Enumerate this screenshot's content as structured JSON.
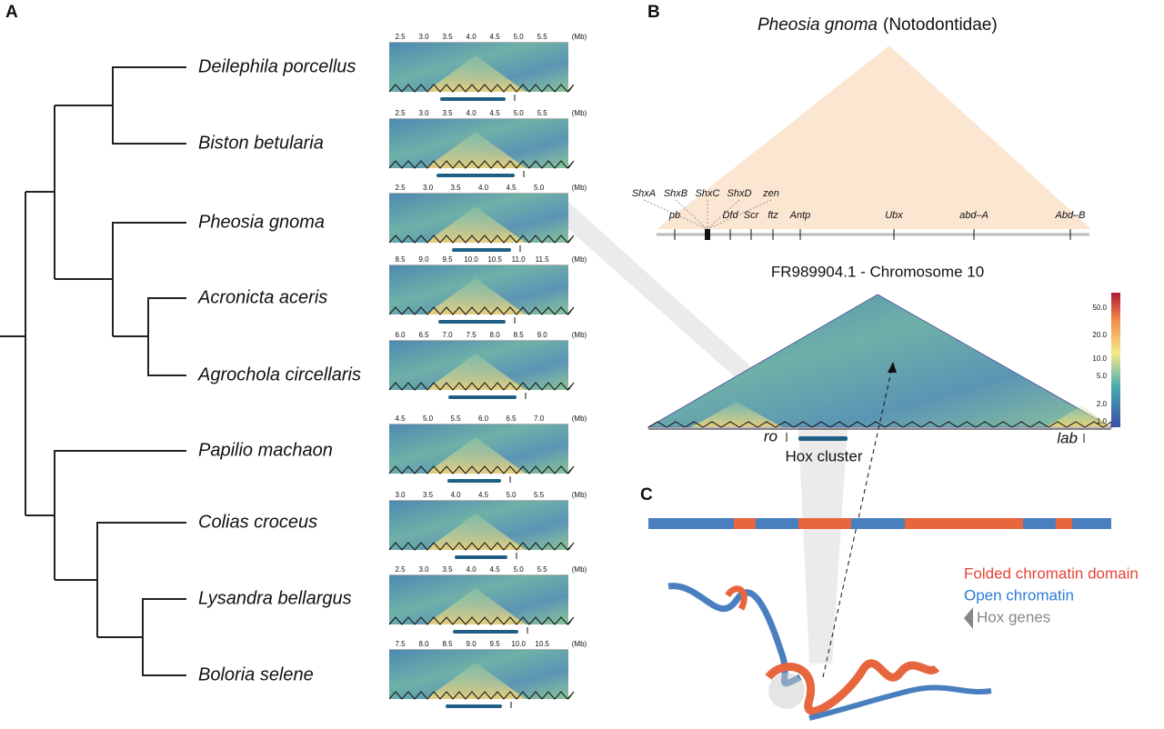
{
  "panels": {
    "a": "A",
    "b": "B",
    "c": "C"
  },
  "unit": "(Mb)",
  "species": [
    {
      "name": "Deilephila porcellus",
      "ticks": [
        "2.5",
        "3.0",
        "3.5",
        "4.0",
        "4.5",
        "5.0",
        "5.5"
      ]
    },
    {
      "name": "Biston betularia",
      "ticks": [
        "2.5",
        "3.0",
        "3.5",
        "4.0",
        "4.5",
        "5.0",
        "5.5"
      ]
    },
    {
      "name": "Pheosia gnoma",
      "ticks": [
        "2.5",
        "3.0",
        "3.5",
        "4.0",
        "4.5",
        "5.0"
      ]
    },
    {
      "name": "Acronicta aceris",
      "ticks": [
        "8.5",
        "9.0",
        "9.5",
        "10.0",
        "10.5",
        "11.0",
        "11.5"
      ]
    },
    {
      "name": "Agrochola circellaris",
      "ticks": [
        "6.0",
        "6.5",
        "7.0",
        "7.5",
        "8.0",
        "8.5",
        "9.0"
      ]
    },
    {
      "name": "Papilio machaon",
      "ticks": [
        "4.5",
        "5.0",
        "5.5",
        "6.0",
        "6.5",
        "7.0"
      ]
    },
    {
      "name": "Colias croceus",
      "ticks": [
        "3.0",
        "3.5",
        "4.0",
        "4.5",
        "5.0",
        "5.5"
      ]
    },
    {
      "name": "Lysandra bellargus",
      "ticks": [
        "2.5",
        "3.0",
        "3.5",
        "4.0",
        "4.5",
        "5.0",
        "5.5"
      ]
    },
    {
      "name": "Boloria selene",
      "ticks": [
        "7.5",
        "8.0",
        "8.5",
        "9.0",
        "9.5",
        "10.0",
        "10.5"
      ]
    }
  ],
  "b": {
    "species": "Pheosia gnoma",
    "family": "(Notodontidae)",
    "genes_top": [
      "ShxA",
      "ShxB",
      "ShxC",
      "ShxD",
      "zen"
    ],
    "genes_bottom": [
      "pb",
      "Dfd",
      "Scr",
      "ftz",
      "Antp",
      "Ubx",
      "abd–A",
      "Abd–B"
    ],
    "chromosome": "FR989904.1 - Chromosome 10",
    "colorbar": [
      "50.0",
      "20.0",
      "10.0",
      "5.0",
      "2.0",
      "1.0"
    ],
    "ro": "ro",
    "lab": "lab",
    "hox": "Hox cluster"
  },
  "c": {
    "legend": [
      "Folded chromatin domain",
      "Open chromatin",
      "Hox genes"
    ]
  }
}
